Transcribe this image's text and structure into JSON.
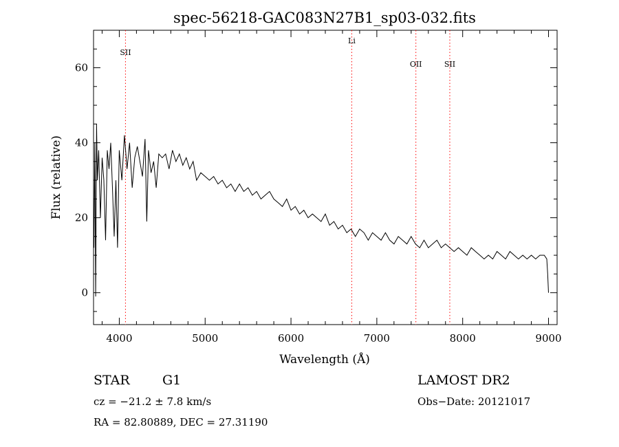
{
  "chart_data": {
    "type": "line",
    "title": "spec-56218-GAC083N27B1_sp03-032.fits",
    "xlabel": "Wavelength (Å)",
    "ylabel": "Flux (relative)",
    "xlim": [
      3700,
      9100
    ],
    "ylim": [
      -8.5,
      70
    ],
    "xticks": [
      4000,
      5000,
      6000,
      7000,
      8000,
      9000
    ],
    "yticks": [
      0,
      20,
      40,
      60
    ],
    "grid": false,
    "line_color": "#000000",
    "marker_color": "#ff0000",
    "series": [
      {
        "x": [
          3705,
          3715,
          3725,
          3735,
          3745,
          3760,
          3780,
          3800,
          3820,
          3840,
          3860,
          3880,
          3900,
          3920,
          3940,
          3960,
          3980,
          4000,
          4030,
          4060,
          4090,
          4120,
          4150,
          4180,
          4210,
          4240,
          4270,
          4300,
          4320,
          4340,
          4370,
          4400,
          4430,
          4460,
          4500,
          4540,
          4580,
          4620,
          4660,
          4700,
          4740,
          4780,
          4820,
          4860,
          4900,
          4950,
          5000,
          5050,
          5100,
          5150,
          5200,
          5250,
          5300,
          5350,
          5400,
          5450,
          5500,
          5550,
          5600,
          5650,
          5700,
          5750,
          5800,
          5850,
          5900,
          5950,
          6000,
          6050,
          6100,
          6150,
          6200,
          6250,
          6300,
          6350,
          6400,
          6450,
          6500,
          6550,
          6600,
          6650,
          6700,
          6750,
          6800,
          6850,
          6900,
          6950,
          7000,
          7050,
          7100,
          7150,
          7200,
          7250,
          7300,
          7350,
          7400,
          7450,
          7500,
          7550,
          7600,
          7650,
          7700,
          7750,
          7800,
          7850,
          7900,
          7950,
          8000,
          8050,
          8100,
          8150,
          8200,
          8250,
          8300,
          8350,
          8400,
          8450,
          8500,
          8550,
          8600,
          8650,
          8700,
          8750,
          8800,
          8850,
          8900,
          8950,
          8980,
          8990,
          9000
        ],
        "y": [
          12,
          40,
          -1,
          45,
          30,
          38,
          20,
          36,
          30,
          14,
          38,
          33,
          40,
          28,
          15,
          30,
          12,
          38,
          30,
          42,
          33,
          40,
          28,
          36,
          39,
          35,
          31,
          41,
          19,
          38,
          32,
          35,
          28,
          37,
          36,
          37,
          33,
          38,
          35,
          37,
          34,
          36,
          33,
          35,
          30,
          32,
          31,
          30,
          31,
          29,
          30,
          28,
          29,
          27,
          29,
          27,
          28,
          26,
          27,
          25,
          26,
          27,
          25,
          24,
          23,
          25,
          22,
          23,
          21,
          22,
          20,
          21,
          20,
          19,
          21,
          18,
          19,
          17,
          18,
          16,
          17,
          15,
          17,
          16,
          14,
          16,
          15,
          14,
          16,
          14,
          13,
          15,
          14,
          13,
          15,
          13,
          12,
          14,
          12,
          13,
          14,
          12,
          13,
          12,
          11,
          12,
          11,
          10,
          12,
          11,
          10,
          9,
          10,
          9,
          11,
          10,
          9,
          11,
          10,
          9,
          10,
          9,
          10,
          9,
          10,
          10,
          9,
          5,
          0
        ]
      }
    ],
    "spectral_lines": [
      {
        "label": "SII",
        "x": 4072
      },
      {
        "label": "Li",
        "x": 6708
      },
      {
        "label": "OII",
        "x": 7455
      },
      {
        "label": "SII",
        "x": 7850
      }
    ]
  },
  "info": {
    "class": "STAR",
    "subclass": "G1",
    "survey": "LAMOST DR2",
    "cz": "cz = −21.2 ± 7.8 km/s",
    "obs_date": "Obs−Date: 20121017",
    "coords": "RA =  82.80889, DEC =  27.31190"
  }
}
